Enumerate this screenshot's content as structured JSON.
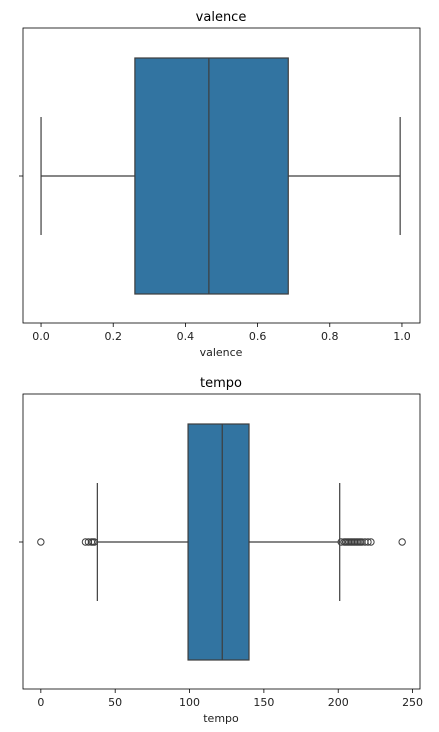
{
  "chart_data": [
    {
      "type": "box",
      "title": "valence",
      "xlabel": "valence",
      "xlim": [
        -0.05,
        1.05
      ],
      "xticks": [
        0.0,
        0.2,
        0.4,
        0.6,
        0.8,
        1.0
      ],
      "xtick_labels": [
        "0.0",
        "0.2",
        "0.4",
        "0.6",
        "0.8",
        "1.0"
      ],
      "ytick_labels": [
        ""
      ],
      "box": {
        "whisker_low": 0.0,
        "q1": 0.26,
        "median": 0.465,
        "q3": 0.685,
        "whisker_high": 0.995
      },
      "outliers": [],
      "grid": false,
      "colors": {
        "box_fill": "#3274a1",
        "line": "#3d3d3d"
      }
    },
    {
      "type": "box",
      "title": "tempo",
      "xlabel": "tempo",
      "xlim": [
        -12,
        255
      ],
      "xticks": [
        0,
        50,
        100,
        150,
        200,
        250
      ],
      "xtick_labels": [
        "0",
        "50",
        "100",
        "150",
        "200",
        "250"
      ],
      "ytick_labels": [
        ""
      ],
      "box": {
        "whisker_low": 38,
        "q1": 99,
        "median": 122,
        "q3": 140,
        "whisker_high": 201
      },
      "outliers": [
        0,
        30,
        32,
        34,
        35,
        36,
        202,
        204,
        205,
        206,
        207,
        208,
        209,
        210,
        211,
        212,
        213,
        214,
        215,
        216,
        218,
        220,
        222,
        243
      ],
      "grid": false,
      "colors": {
        "box_fill": "#3274a1",
        "line": "#3d3d3d"
      }
    }
  ]
}
